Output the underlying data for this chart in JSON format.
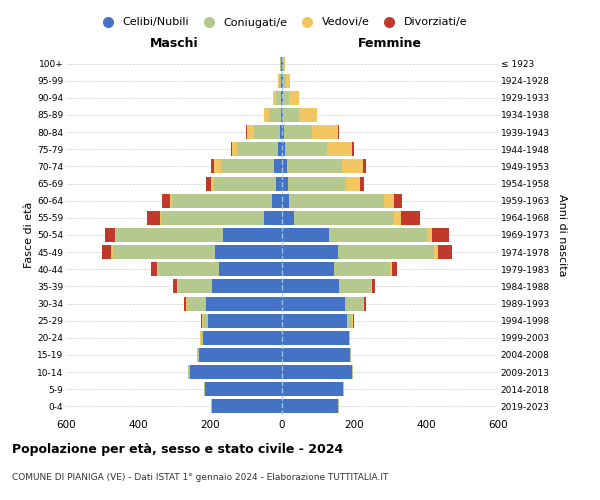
{
  "age_groups": [
    "0-4",
    "5-9",
    "10-14",
    "15-19",
    "20-24",
    "25-29",
    "30-34",
    "35-39",
    "40-44",
    "45-49",
    "50-54",
    "55-59",
    "60-64",
    "65-69",
    "70-74",
    "75-79",
    "80-84",
    "85-89",
    "90-94",
    "95-99",
    "100+"
  ],
  "birth_years": [
    "2019-2023",
    "2014-2018",
    "2009-2013",
    "2004-2008",
    "1999-2003",
    "1994-1998",
    "1989-1993",
    "1984-1988",
    "1979-1983",
    "1974-1978",
    "1969-1973",
    "1964-1968",
    "1959-1963",
    "1954-1958",
    "1949-1953",
    "1944-1948",
    "1939-1943",
    "1934-1938",
    "1929-1933",
    "1924-1928",
    "≤ 1923"
  ],
  "males": {
    "celibi": [
      195,
      215,
      255,
      230,
      220,
      205,
      210,
      195,
      175,
      185,
      165,
      50,
      28,
      18,
      22,
      12,
      6,
      4,
      2,
      2,
      2
    ],
    "coniugati": [
      2,
      2,
      5,
      5,
      5,
      15,
      55,
      95,
      170,
      285,
      295,
      285,
      278,
      172,
      148,
      112,
      72,
      32,
      14,
      5,
      3
    ],
    "vedovi": [
      0,
      0,
      0,
      0,
      2,
      2,
      2,
      3,
      3,
      5,
      5,
      5,
      5,
      8,
      18,
      14,
      18,
      14,
      8,
      3,
      1
    ],
    "divorziati": [
      0,
      0,
      0,
      0,
      0,
      2,
      5,
      10,
      15,
      25,
      28,
      35,
      22,
      14,
      10,
      5,
      5,
      0,
      0,
      0,
      0
    ]
  },
  "females": {
    "nubili": [
      155,
      170,
      195,
      190,
      185,
      180,
      175,
      158,
      145,
      155,
      130,
      32,
      20,
      16,
      14,
      8,
      6,
      4,
      2,
      2,
      2
    ],
    "coniugate": [
      2,
      2,
      3,
      3,
      5,
      15,
      50,
      88,
      155,
      268,
      272,
      278,
      262,
      162,
      152,
      118,
      78,
      42,
      18,
      8,
      3
    ],
    "vedove": [
      0,
      0,
      0,
      0,
      0,
      2,
      2,
      3,
      5,
      10,
      15,
      20,
      28,
      38,
      58,
      68,
      72,
      52,
      28,
      12,
      3
    ],
    "divorziate": [
      0,
      0,
      0,
      0,
      0,
      2,
      5,
      10,
      14,
      38,
      48,
      52,
      22,
      12,
      10,
      5,
      3,
      0,
      0,
      0,
      0
    ]
  },
  "colors": {
    "celibi": "#4472c4",
    "coniugati": "#b5c98e",
    "vedovi": "#f2c661",
    "divorziati": "#c0392b"
  },
  "title": "Popolazione per età, sesso e stato civile - 2024",
  "subtitle": "COMUNE DI PIANIGA (VE) - Dati ISTAT 1° gennaio 2024 - Elaborazione TUTTITALIA.IT",
  "xlabel_left": "Maschi",
  "xlabel_right": "Femmine",
  "ylabel_left": "Fasce di età",
  "ylabel_right": "Anni di nascita",
  "legend_labels": [
    "Celibi/Nubili",
    "Coniugati/e",
    "Vedovi/e",
    "Divorziati/e"
  ],
  "xlim": 600,
  "background_color": "#ffffff"
}
